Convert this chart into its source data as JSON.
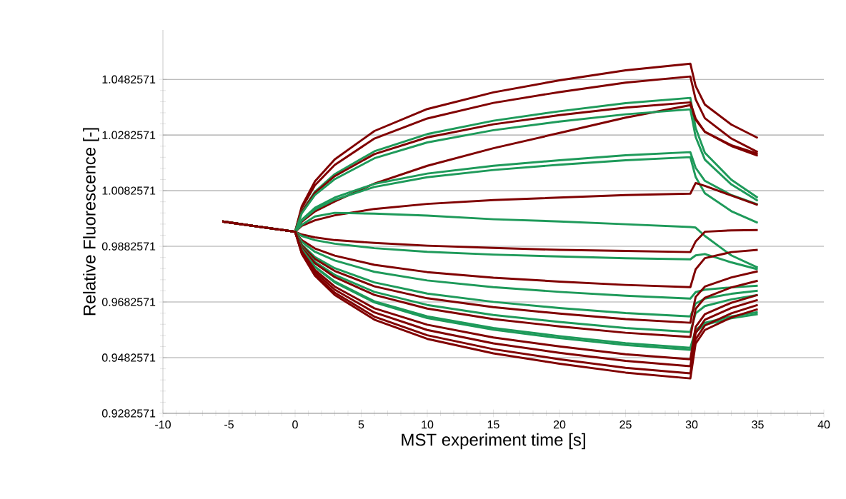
{
  "chart_data": {
    "type": "line",
    "xlabel": "MST experiment time [s]",
    "ylabel": "Relative Fluorescence [-]",
    "x": [
      -5.5,
      -3,
      0,
      0.5,
      1.5,
      3,
      6,
      10,
      15,
      20,
      25,
      29.9,
      30.3,
      31,
      33,
      35
    ],
    "xlim": [
      -10,
      40
    ],
    "xticks": [
      -10,
      -5,
      0,
      5,
      10,
      15,
      20,
      25,
      30,
      35,
      40
    ],
    "ylim": [
      0.9282571,
      1.066
    ],
    "yticks": [
      0.9282571,
      0.9482571,
      0.9682571,
      0.9882571,
      1.0082571,
      1.0282571,
      1.0482571
    ],
    "grid": "y",
    "marker": "none",
    "line_style": "solid",
    "series": [
      {
        "color": "#800000",
        "values": [
          0.9972,
          0.9955,
          0.9935,
          1.0026,
          1.0116,
          1.0195,
          1.0297,
          1.0376,
          1.0436,
          1.0479,
          1.0515,
          1.0539,
          1.0459,
          1.0392,
          1.032,
          1.0272
        ]
      },
      {
        "color": "#800000",
        "values": [
          0.9972,
          0.9955,
          0.9935,
          1.0019,
          1.0102,
          1.0175,
          1.027,
          1.0342,
          1.0398,
          1.0437,
          1.0471,
          1.0493,
          1.0411,
          1.0343,
          1.027,
          1.0221
        ]
      },
      {
        "color": "#1e9a5a",
        "values": [
          0.9972,
          0.9955,
          0.9935,
          1.0007,
          1.0079,
          1.0142,
          1.0224,
          1.0286,
          1.0334,
          1.0368,
          1.0397,
          1.0416,
          1.0308,
          1.0219,
          1.0122,
          1.0057
        ]
      },
      {
        "color": "#800000",
        "values": [
          0.9972,
          0.9955,
          0.9935,
          1.0005,
          1.0075,
          1.0135,
          1.0214,
          1.0274,
          1.0321,
          1.0354,
          1.0381,
          1.04,
          1.0342,
          1.0294,
          1.0243,
          1.0208
        ]
      },
      {
        "color": "#800000",
        "values": [
          0.9972,
          0.9955,
          0.9935,
          0.9971,
          1.0008,
          1.0044,
          1.0108,
          1.0172,
          1.0235,
          1.029,
          1.0345,
          1.039,
          1.0337,
          1.0294,
          1.0246,
          1.0215
        ]
      },
      {
        "color": "#1e9a5a",
        "values": [
          0.9972,
          0.9955,
          0.9935,
          1.0001,
          1.0067,
          1.0124,
          1.0199,
          1.0256,
          1.03,
          1.0331,
          1.0357,
          1.0375,
          1.0276,
          1.0194,
          1.0105,
          1.0046
        ]
      },
      {
        "color": "#1e9a5a",
        "values": [
          0.9972,
          0.9955,
          0.9935,
          0.9978,
          1.0021,
          1.0058,
          1.0107,
          1.0144,
          1.0172,
          1.0192,
          1.021,
          1.0221,
          1.0165,
          1.0118,
          1.0067,
          1.0033
        ]
      },
      {
        "color": "#1e9a5a",
        "values": [
          0.9972,
          0.9955,
          0.9935,
          0.9975,
          1.0015,
          1.005,
          1.0096,
          1.0131,
          1.0157,
          1.0176,
          1.0192,
          1.0203,
          1.0132,
          1.0073,
          1.0009,
          0.9967
        ]
      },
      {
        "color": "#800000",
        "values": [
          0.9972,
          0.9955,
          0.9935,
          0.9956,
          0.9976,
          0.9994,
          1.0017,
          1.0035,
          1.0049,
          1.0058,
          1.0067,
          1.0072,
          1.011,
          1.01,
          1.0065,
          1.0031
        ]
      },
      {
        "color": "#1e9a5a",
        "values": [
          0.9972,
          0.9955,
          0.9935,
          0.996,
          0.999,
          1.0003,
          1.0,
          0.9993,
          0.998,
          0.9972,
          0.9962,
          0.9952,
          0.995,
          0.992,
          0.985,
          0.9806
        ]
      },
      {
        "color": "#800000",
        "values": [
          0.9972,
          0.9955,
          0.9935,
          0.9925,
          0.9915,
          0.9905,
          0.9895,
          0.9885,
          0.9877,
          0.987,
          0.9866,
          0.9862,
          0.99,
          0.9935,
          0.994,
          0.9941
        ]
      },
      {
        "color": "#1e9a5a",
        "values": [
          0.9972,
          0.9955,
          0.9935,
          0.992,
          0.9905,
          0.9892,
          0.9876,
          0.9863,
          0.9853,
          0.9846,
          0.984,
          0.9836,
          0.985,
          0.9855,
          0.9825,
          0.98
        ]
      },
      {
        "color": "#800000",
        "values": [
          0.9972,
          0.9955,
          0.9935,
          0.9905,
          0.9875,
          0.9849,
          0.9816,
          0.979,
          0.977,
          0.9756,
          0.9744,
          0.9736,
          0.98,
          0.984,
          0.9862,
          0.987
        ]
      },
      {
        "color": "#1e9a5a",
        "values": [
          0.9972,
          0.9955,
          0.9935,
          0.9899,
          0.9863,
          0.9832,
          0.9791,
          0.976,
          0.9736,
          0.9719,
          0.9705,
          0.9695,
          0.9718,
          0.9727,
          0.9735,
          0.9741
        ]
      },
      {
        "color": "#1e9a5a",
        "values": [
          0.9972,
          0.9955,
          0.9935,
          0.9889,
          0.9844,
          0.9804,
          0.9753,
          0.9713,
          0.9683,
          0.9661,
          0.9643,
          0.9631,
          0.9677,
          0.9695,
          0.9712,
          0.9723
        ]
      },
      {
        "color": "#800000",
        "values": [
          0.9972,
          0.9955,
          0.9935,
          0.9886,
          0.9837,
          0.9794,
          0.9739,
          0.9696,
          0.9664,
          0.9641,
          0.9621,
          0.9608,
          0.9701,
          0.9738,
          0.9771,
          0.9793
        ]
      },
      {
        "color": "#1e9a5a",
        "values": [
          0.9972,
          0.9955,
          0.9935,
          0.9881,
          0.9827,
          0.978,
          0.9719,
          0.9672,
          0.9636,
          0.9611,
          0.9589,
          0.9575,
          0.9642,
          0.9668,
          0.9692,
          0.9708
        ]
      },
      {
        "color": "#800000",
        "values": [
          0.9972,
          0.9955,
          0.9935,
          0.9878,
          0.9822,
          0.9772,
          0.9708,
          0.9659,
          0.9621,
          0.9595,
          0.9572,
          0.9557,
          0.9658,
          0.9698,
          0.9735,
          0.9759
        ]
      },
      {
        "color": "#1e9a5a",
        "values": [
          0.9972,
          0.9955,
          0.9935,
          0.9872,
          0.981,
          0.9756,
          0.9685,
          0.9631,
          0.9589,
          0.956,
          0.9535,
          0.9518,
          0.9582,
          0.9608,
          0.9631,
          0.9646
        ]
      },
      {
        "color": "#1e9a5a",
        "values": [
          0.9972,
          0.9955,
          0.9935,
          0.9871,
          0.9808,
          0.9753,
          0.9681,
          0.9625,
          0.9583,
          0.9553,
          0.9528,
          0.9511,
          0.9575,
          0.9601,
          0.9624,
          0.9639
        ]
      },
      {
        "color": "#800000",
        "values": [
          0.9972,
          0.9955,
          0.9935,
          0.9866,
          0.9798,
          0.9738,
          0.966,
          0.9601,
          0.9555,
          0.9523,
          0.9495,
          0.9477,
          0.9593,
          0.9639,
          0.968,
          0.9708
        ]
      },
      {
        "color": "#800000",
        "values": [
          0.9972,
          0.9955,
          0.9935,
          0.9863,
          0.979,
          0.9727,
          0.9645,
          0.9582,
          0.9534,
          0.95,
          0.9471,
          0.9452,
          0.9571,
          0.9619,
          0.9661,
          0.969
        ]
      },
      {
        "color": "#800000",
        "values": [
          0.9972,
          0.9955,
          0.9935,
          0.9859,
          0.9782,
          0.9716,
          0.963,
          0.9563,
          0.9513,
          0.9477,
          0.9446,
          0.9426,
          0.9549,
          0.9598,
          0.9642,
          0.9672
        ]
      },
      {
        "color": "#800000",
        "values": [
          0.9972,
          0.9955,
          0.9935,
          0.9856,
          0.9777,
          0.9708,
          0.9619,
          0.955,
          0.9498,
          0.9461,
          0.9429,
          0.9408,
          0.9533,
          0.9582,
          0.9627,
          0.9657
        ]
      }
    ]
  }
}
